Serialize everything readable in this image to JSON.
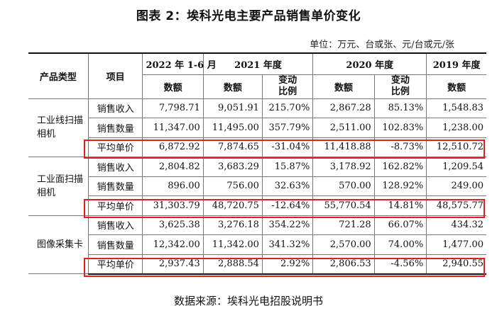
{
  "title": "图表 2：埃科光电主要产品销售单价变化",
  "unit_note": "单位：万元、台或张、元/台或元/张",
  "headers": {
    "product_type": "产品类型",
    "item": "项目",
    "periods": [
      "2022 年 1-6 月",
      "2021 年度",
      "2020 年度",
      "2019 年度"
    ],
    "amount": "数额",
    "change": "变动比例"
  },
  "groups": [
    {
      "category": "工业线扫描相机",
      "rows": [
        {
          "item": "销售收入",
          "v2022": "7,798.71",
          "v2021": "9,051.91",
          "c2021": "215.70%",
          "v2020": "2,867.28",
          "c2020": "85.13%",
          "v2019": "1,548.83"
        },
        {
          "item": "销售数量",
          "v2022": "11,347.00",
          "v2021": "11,495.00",
          "c2021": "357.79%",
          "v2020": "2,511.00",
          "c2020": "102.83%",
          "v2019": "1,238.00"
        },
        {
          "item": "平均单价",
          "v2022": "6,872.92",
          "v2021": "7,874.65",
          "c2021": "-31.04%",
          "v2020": "11,418.88",
          "c2020": "-8.73%",
          "v2019": "12,510.72"
        }
      ]
    },
    {
      "category": "工业面扫描相机",
      "rows": [
        {
          "item": "销售收入",
          "v2022": "2,804.82",
          "v2021": "3,683.29",
          "c2021": "15.87%",
          "v2020": "3,178.92",
          "c2020": "162.82%",
          "v2019": "1,209.54"
        },
        {
          "item": "销售数量",
          "v2022": "896.00",
          "v2021": "756.00",
          "c2021": "32.63%",
          "v2020": "570.00",
          "c2020": "128.92%",
          "v2019": "249.00"
        },
        {
          "item": "平均单价",
          "v2022": "31,303.79",
          "v2021": "48,720.75",
          "c2021": "-12.64%",
          "v2020": "55,770.54",
          "c2020": "14.81%",
          "v2019": "48,575.77"
        }
      ]
    },
    {
      "category": "图像采集卡",
      "rows": [
        {
          "item": "销售收入",
          "v2022": "3,625.38",
          "v2021": "3,276.18",
          "c2021": "354.22%",
          "v2020": "721.28",
          "c2020": "66.07%",
          "v2019": "434.32"
        },
        {
          "item": "销售数量",
          "v2022": "12,342.00",
          "v2021": "11,342.00",
          "c2021": "341.32%",
          "v2020": "2,570.00",
          "c2020": "74.00%",
          "v2019": "1,477.00"
        },
        {
          "item": "平均单价",
          "v2022": "2,937.43",
          "v2021": "2,888.54",
          "c2021": "2.92%",
          "v2020": "2,806.53",
          "c2020": "-4.56%",
          "v2019": "2,940.55"
        }
      ]
    }
  ],
  "highlight_color": "#e02020",
  "source": "数据来源：埃科光电招股说明书"
}
